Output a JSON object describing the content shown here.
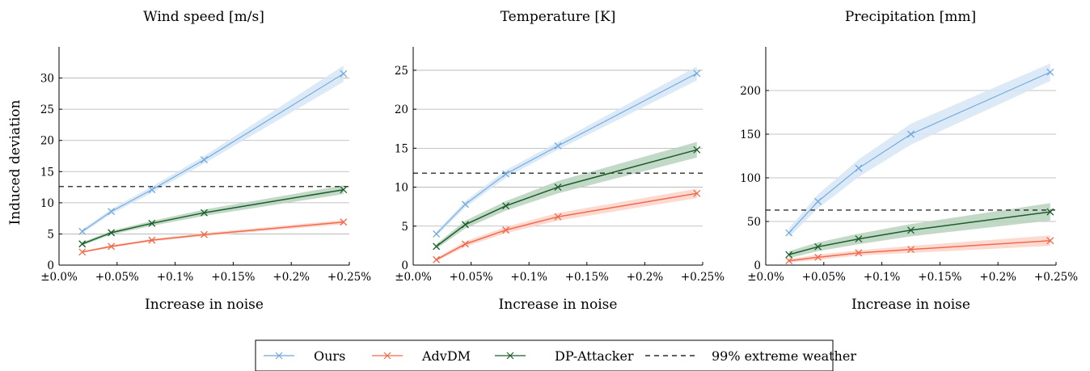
{
  "chart_data": [
    {
      "type": "line",
      "title": "Wind speed [m/s]",
      "xlabel": "Increase in noise",
      "ylabel": "Induced deviation",
      "x": [
        0.02,
        0.045,
        0.08,
        0.125,
        0.245
      ],
      "xlim": [
        0,
        0.25
      ],
      "xticks": [
        0,
        0.05,
        0.1,
        0.15,
        0.2,
        0.25
      ],
      "xtick_labels": [
        "±0.0%",
        "+0.05%",
        "+0.1%",
        "+0.15%",
        "+0.2%",
        "+0.25%"
      ],
      "ylim": [
        0,
        35
      ],
      "yticks": [
        0,
        5,
        10,
        15,
        20,
        25,
        30
      ],
      "grid": "horizontal",
      "series": [
        {
          "name": "Ours",
          "values": [
            5.4,
            8.6,
            12.1,
            16.9,
            30.7
          ],
          "band": [
            0.3,
            0.4,
            0.5,
            0.6,
            1.3
          ]
        },
        {
          "name": "AdvDM",
          "values": [
            2.1,
            3.0,
            4.0,
            4.9,
            6.9
          ],
          "band": [
            0.15,
            0.2,
            0.2,
            0.25,
            0.35
          ]
        },
        {
          "name": "DP-Attacker",
          "values": [
            3.4,
            5.2,
            6.7,
            8.4,
            12.1
          ],
          "band": [
            0.25,
            0.3,
            0.4,
            0.5,
            0.7
          ]
        }
      ],
      "reference_line": {
        "name": "99% extreme weather",
        "value": 12.6
      }
    },
    {
      "type": "line",
      "title": "Temperature [K]",
      "xlabel": "Increase in noise",
      "ylabel": "",
      "x": [
        0.02,
        0.045,
        0.08,
        0.125,
        0.245
      ],
      "xlim": [
        0,
        0.25
      ],
      "xticks": [
        0,
        0.05,
        0.1,
        0.15,
        0.2,
        0.25
      ],
      "xtick_labels": [
        "±0.0%",
        "+0.05%",
        "+0.1%",
        "+0.15%",
        "+0.2%",
        "+0.25%"
      ],
      "ylim": [
        0,
        28
      ],
      "yticks": [
        0,
        5,
        10,
        15,
        20,
        25
      ],
      "grid": "horizontal",
      "series": [
        {
          "name": "Ours",
          "values": [
            4.0,
            7.8,
            11.7,
            15.3,
            24.6
          ],
          "band": [
            0.3,
            0.4,
            0.5,
            0.5,
            0.9
          ]
        },
        {
          "name": "AdvDM",
          "values": [
            0.7,
            2.7,
            4.5,
            6.2,
            9.2
          ],
          "band": [
            0.2,
            0.35,
            0.4,
            0.5,
            0.6
          ]
        },
        {
          "name": "DP-Attacker",
          "values": [
            2.4,
            5.2,
            7.6,
            10.0,
            14.8
          ],
          "band": [
            0.3,
            0.5,
            0.6,
            0.8,
            1.0
          ]
        }
      ],
      "reference_line": {
        "name": "99% extreme weather",
        "value": 11.8
      }
    },
    {
      "type": "line",
      "title": "Precipitation [mm]",
      "xlabel": "Increase in noise",
      "ylabel": "",
      "x": [
        0.02,
        0.045,
        0.08,
        0.125,
        0.245
      ],
      "xlim": [
        0,
        0.25
      ],
      "xticks": [
        0,
        0.05,
        0.1,
        0.15,
        0.2,
        0.25
      ],
      "xtick_labels": [
        "±0.0%",
        "+0.05%",
        "+0.1%",
        "+0.15%",
        "+0.2%",
        "+0.25%"
      ],
      "ylim": [
        0,
        250
      ],
      "yticks": [
        0,
        50,
        100,
        150,
        200
      ],
      "grid": "horizontal",
      "series": [
        {
          "name": "Ours",
          "values": [
            37,
            73,
            111,
            150,
            221
          ],
          "band": [
            5,
            8,
            10,
            12,
            10
          ]
        },
        {
          "name": "AdvDM",
          "values": [
            5,
            9,
            14,
            18,
            28
          ],
          "band": [
            2,
            3,
            3,
            4,
            6
          ]
        },
        {
          "name": "DP-Attacker",
          "values": [
            12,
            21,
            30,
            40,
            61
          ],
          "band": [
            4,
            5,
            6,
            7,
            10
          ]
        }
      ],
      "reference_line": {
        "name": "99% extreme weather",
        "value": 63
      }
    }
  ],
  "legend": {
    "items": [
      {
        "label": "Ours",
        "color": "#6fa8dc",
        "style": "line-cross"
      },
      {
        "label": "AdvDM",
        "color": "#f26a4b",
        "style": "line-cross"
      },
      {
        "label": "DP-Attacker",
        "color": "#1a5e2a",
        "style": "line-cross"
      },
      {
        "label": "99% extreme weather",
        "color": "#000000",
        "style": "dashed"
      }
    ]
  },
  "colors": {
    "Ours": "#6fa8dc",
    "Ours_band": "#d6e6f7",
    "AdvDM": "#f26a4b",
    "AdvDM_band": "#fbd3c9",
    "DP-Attacker": "#1a5e2a",
    "DP-Attacker_band": "#b9d2bd",
    "reference": "#000000",
    "grid": "#b0b0b0"
  }
}
